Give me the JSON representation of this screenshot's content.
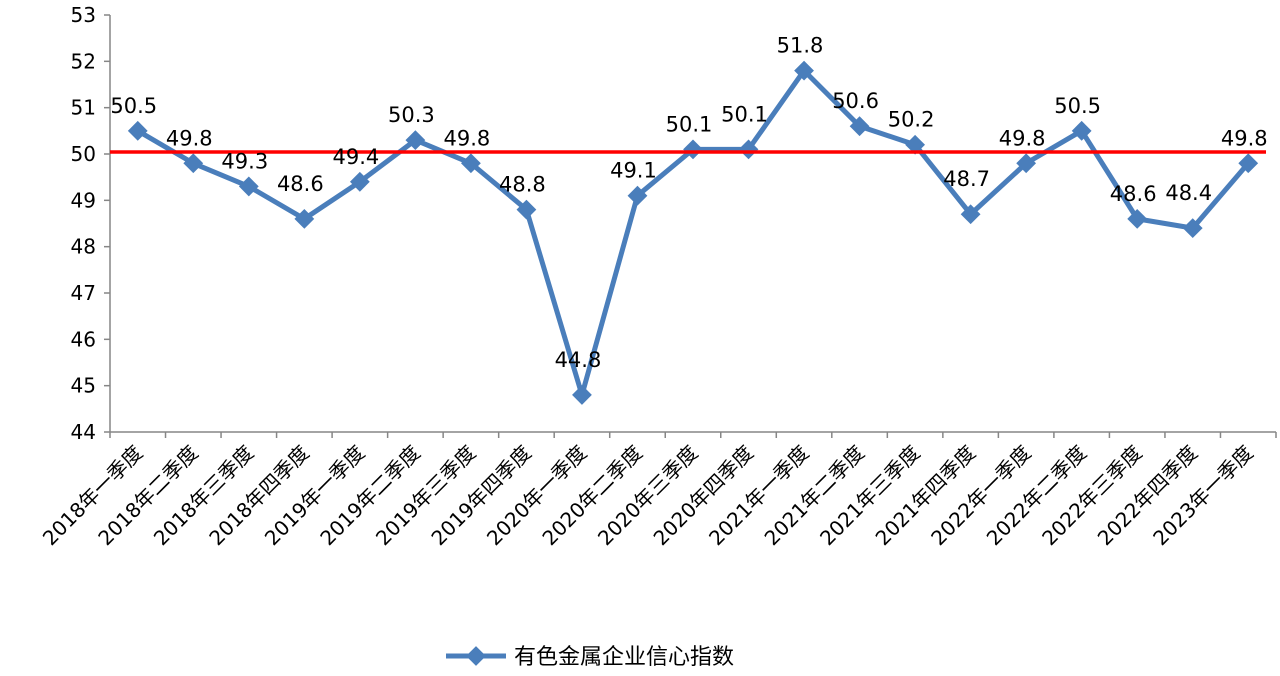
{
  "chart_data": {
    "type": "line",
    "categories": [
      "2018年一季度",
      "2018年二季度",
      "2018年三季度",
      "2018年四季度",
      "2019年一季度",
      "2019年二季度",
      "2019年三季度",
      "2019年四季度",
      "2020年一季度",
      "2020年二季度",
      "2020年三季度",
      "2020年四季度",
      "2021年一季度",
      "2021年二季度",
      "2021年三季度",
      "2021年四季度",
      "2022年一季度",
      "2022年二季度",
      "2022年三季度",
      "2022年四季度",
      "2023年一季度"
    ],
    "series": [
      {
        "name": "有色金属企业信心指数",
        "color": "#4a7ebb",
        "values": [
          50.5,
          49.8,
          49.3,
          48.6,
          49.4,
          50.3,
          49.8,
          48.8,
          44.8,
          49.1,
          50.1,
          50.1,
          51.8,
          50.6,
          50.2,
          48.7,
          49.8,
          50.5,
          48.6,
          48.4,
          49.8
        ]
      }
    ],
    "data_labels": [
      "50.5",
      "49.8",
      "49.3",
      "48.6",
      "49.4",
      "50.3",
      "49.8",
      "48.8",
      "44.8",
      "49.1",
      "50.1",
      "50.1",
      "51.8",
      "50.6",
      "50.2",
      "48.7",
      "49.8",
      "50.5",
      "48.6",
      "48.4",
      "49.8"
    ],
    "y_ticks": [
      44,
      45,
      46,
      47,
      48,
      49,
      50,
      51,
      52,
      53
    ],
    "ylim": [
      44,
      53
    ],
    "reference_line": {
      "value": 50,
      "color": "#ff0000"
    },
    "legend": {
      "position": "bottom"
    },
    "grid": false
  }
}
